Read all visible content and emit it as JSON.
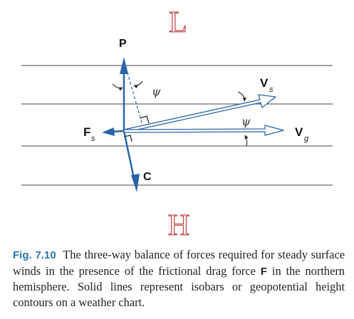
{
  "diagram": {
    "low_label": "L",
    "high_label": "H",
    "labels": {
      "p": "P",
      "c": "C",
      "f": "F",
      "f_sub": "s",
      "vs": "V",
      "vs_sub": "s",
      "vg": "V",
      "vg_sub": "g",
      "psi_top": "ψ",
      "psi_mid": "ψ"
    },
    "colors": {
      "arrow": "#2a64a8",
      "isobar": "#444444",
      "pressure_letters": "#c0504d"
    }
  },
  "caption": {
    "label": "Fig. 7.10",
    "text_before": "The three-way balance of forces required for steady surface winds in the presence of the frictional drag force",
    "symbol": "F",
    "text_after": "in the northern hemisphere. Solid lines represent isobars or geopotential height contours on a weather chart."
  }
}
